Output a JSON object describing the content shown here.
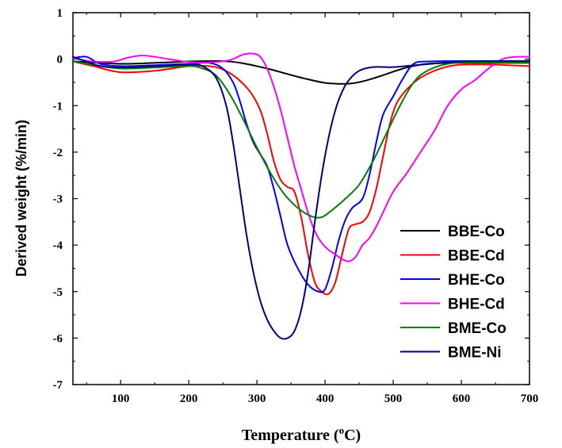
{
  "chart_data": {
    "type": "line",
    "xlabel": "Temperature (",
    "xlabel_sup": "o",
    "xlabel_unit": "C)",
    "ylabel": "Derived weight (%/min)",
    "xlim": [
      30,
      700
    ],
    "ylim": [
      -7,
      1
    ],
    "x_ticks": [
      100,
      200,
      300,
      400,
      500,
      600,
      700
    ],
    "y_ticks": [
      1,
      0,
      -1,
      -2,
      -3,
      -4,
      -5,
      -6,
      -7
    ],
    "grid": false,
    "legend_position": "bottom-right",
    "series": [
      {
        "name": "BBE-Co",
        "color": "#000000",
        "points": [
          [
            30,
            -0.05
          ],
          [
            60,
            -0.07
          ],
          [
            100,
            -0.1
          ],
          [
            150,
            -0.08
          ],
          [
            200,
            -0.05
          ],
          [
            240,
            -0.04
          ],
          [
            260,
            -0.05
          ],
          [
            280,
            -0.09
          ],
          [
            300,
            -0.15
          ],
          [
            320,
            -0.22
          ],
          [
            340,
            -0.3
          ],
          [
            360,
            -0.38
          ],
          [
            380,
            -0.45
          ],
          [
            400,
            -0.51
          ],
          [
            420,
            -0.53
          ],
          [
            440,
            -0.52
          ],
          [
            460,
            -0.46
          ],
          [
            480,
            -0.37
          ],
          [
            500,
            -0.27
          ],
          [
            520,
            -0.18
          ],
          [
            550,
            -0.1
          ],
          [
            600,
            -0.08
          ],
          [
            650,
            -0.08
          ],
          [
            700,
            -0.08
          ]
        ]
      },
      {
        "name": "BBE-Cd",
        "color": "#ff0000",
        "points": [
          [
            30,
            -0.05
          ],
          [
            60,
            -0.15
          ],
          [
            100,
            -0.28
          ],
          [
            150,
            -0.25
          ],
          [
            200,
            -0.15
          ],
          [
            230,
            -0.15
          ],
          [
            250,
            -0.22
          ],
          [
            270,
            -0.4
          ],
          [
            290,
            -0.7
          ],
          [
            305,
            -1.1
          ],
          [
            315,
            -1.6
          ],
          [
            325,
            -2.2
          ],
          [
            335,
            -2.6
          ],
          [
            345,
            -2.75
          ],
          [
            355,
            -2.85
          ],
          [
            365,
            -3.4
          ],
          [
            375,
            -4.2
          ],
          [
            385,
            -4.8
          ],
          [
            395,
            -5.0
          ],
          [
            405,
            -5.05
          ],
          [
            415,
            -4.8
          ],
          [
            425,
            -4.2
          ],
          [
            435,
            -3.65
          ],
          [
            445,
            -3.55
          ],
          [
            455,
            -3.5
          ],
          [
            465,
            -3.3
          ],
          [
            475,
            -2.8
          ],
          [
            485,
            -2.1
          ],
          [
            495,
            -1.4
          ],
          [
            505,
            -0.95
          ],
          [
            520,
            -0.65
          ],
          [
            540,
            -0.4
          ],
          [
            570,
            -0.2
          ],
          [
            600,
            -0.12
          ],
          [
            650,
            -0.12
          ],
          [
            700,
            -0.15
          ]
        ]
      },
      {
        "name": "BHE-Co",
        "color": "#0000ff",
        "points": [
          [
            30,
            0.02
          ],
          [
            50,
            0.05
          ],
          [
            70,
            -0.1
          ],
          [
            100,
            -0.15
          ],
          [
            150,
            -0.13
          ],
          [
            200,
            -0.1
          ],
          [
            230,
            -0.08
          ],
          [
            250,
            -0.2
          ],
          [
            265,
            -0.5
          ],
          [
            275,
            -0.9
          ],
          [
            285,
            -1.4
          ],
          [
            295,
            -1.8
          ],
          [
            305,
            -2.05
          ],
          [
            315,
            -2.3
          ],
          [
            325,
            -2.8
          ],
          [
            335,
            -3.4
          ],
          [
            345,
            -4.0
          ],
          [
            360,
            -4.5
          ],
          [
            375,
            -4.85
          ],
          [
            390,
            -5.0
          ],
          [
            400,
            -4.95
          ],
          [
            410,
            -4.5
          ],
          [
            420,
            -3.9
          ],
          [
            430,
            -3.45
          ],
          [
            440,
            -3.2
          ],
          [
            455,
            -3.0
          ],
          [
            465,
            -2.5
          ],
          [
            475,
            -1.8
          ],
          [
            485,
            -1.2
          ],
          [
            500,
            -0.8
          ],
          [
            515,
            -0.4
          ],
          [
            530,
            -0.1
          ],
          [
            550,
            -0.05
          ],
          [
            600,
            -0.04
          ],
          [
            650,
            -0.05
          ],
          [
            700,
            -0.05
          ]
        ]
      },
      {
        "name": "BHE-Cd",
        "color": "#ff00ff",
        "points": [
          [
            30,
            0.02
          ],
          [
            60,
            -0.05
          ],
          [
            90,
            -0.05
          ],
          [
            110,
            0.03
          ],
          [
            130,
            0.08
          ],
          [
            150,
            0.05
          ],
          [
            180,
            -0.02
          ],
          [
            200,
            -0.06
          ],
          [
            230,
            -0.07
          ],
          [
            260,
            -0.02
          ],
          [
            280,
            0.1
          ],
          [
            295,
            0.12
          ],
          [
            305,
            0.05
          ],
          [
            315,
            -0.2
          ],
          [
            325,
            -0.6
          ],
          [
            335,
            -1.1
          ],
          [
            345,
            -1.7
          ],
          [
            355,
            -2.3
          ],
          [
            365,
            -2.8
          ],
          [
            375,
            -3.3
          ],
          [
            385,
            -3.7
          ],
          [
            395,
            -3.95
          ],
          [
            405,
            -4.1
          ],
          [
            415,
            -4.2
          ],
          [
            425,
            -4.3
          ],
          [
            435,
            -4.35
          ],
          [
            445,
            -4.25
          ],
          [
            455,
            -4.0
          ],
          [
            465,
            -3.85
          ],
          [
            475,
            -3.6
          ],
          [
            485,
            -3.3
          ],
          [
            500,
            -2.85
          ],
          [
            520,
            -2.45
          ],
          [
            540,
            -2.0
          ],
          [
            560,
            -1.55
          ],
          [
            580,
            -1.0
          ],
          [
            600,
            -0.65
          ],
          [
            620,
            -0.45
          ],
          [
            640,
            -0.2
          ],
          [
            660,
            0.0
          ],
          [
            680,
            0.05
          ],
          [
            700,
            0.05
          ]
        ]
      },
      {
        "name": "BME-Co",
        "color": "#008000",
        "points": [
          [
            30,
            -0.05
          ],
          [
            60,
            -0.12
          ],
          [
            100,
            -0.2
          ],
          [
            150,
            -0.18
          ],
          [
            200,
            -0.15
          ],
          [
            220,
            -0.2
          ],
          [
            240,
            -0.35
          ],
          [
            260,
            -0.75
          ],
          [
            280,
            -1.3
          ],
          [
            300,
            -1.9
          ],
          [
            320,
            -2.45
          ],
          [
            340,
            -2.9
          ],
          [
            360,
            -3.2
          ],
          [
            380,
            -3.38
          ],
          [
            395,
            -3.4
          ],
          [
            410,
            -3.25
          ],
          [
            430,
            -3.0
          ],
          [
            450,
            -2.7
          ],
          [
            470,
            -2.2
          ],
          [
            490,
            -1.6
          ],
          [
            510,
            -1.0
          ],
          [
            530,
            -0.5
          ],
          [
            550,
            -0.25
          ],
          [
            580,
            -0.1
          ],
          [
            620,
            -0.07
          ],
          [
            700,
            -0.07
          ]
        ]
      },
      {
        "name": "BME-Ni",
        "color": "#000080",
        "points": [
          [
            30,
            0.05
          ],
          [
            50,
            -0.05
          ],
          [
            70,
            -0.15
          ],
          [
            100,
            -0.18
          ],
          [
            150,
            -0.15
          ],
          [
            200,
            -0.12
          ],
          [
            220,
            -0.15
          ],
          [
            240,
            -0.4
          ],
          [
            255,
            -1.0
          ],
          [
            265,
            -1.8
          ],
          [
            275,
            -2.8
          ],
          [
            285,
            -3.8
          ],
          [
            295,
            -4.6
          ],
          [
            305,
            -5.2
          ],
          [
            315,
            -5.6
          ],
          [
            325,
            -5.85
          ],
          [
            335,
            -6.0
          ],
          [
            345,
            -6.0
          ],
          [
            355,
            -5.85
          ],
          [
            365,
            -5.4
          ],
          [
            375,
            -4.6
          ],
          [
            385,
            -3.5
          ],
          [
            395,
            -2.5
          ],
          [
            405,
            -1.7
          ],
          [
            415,
            -1.1
          ],
          [
            425,
            -0.7
          ],
          [
            435,
            -0.45
          ],
          [
            450,
            -0.25
          ],
          [
            470,
            -0.17
          ],
          [
            500,
            -0.17
          ],
          [
            540,
            -0.12
          ],
          [
            600,
            -0.05
          ],
          [
            650,
            -0.04
          ],
          [
            700,
            -0.04
          ]
        ]
      }
    ]
  }
}
